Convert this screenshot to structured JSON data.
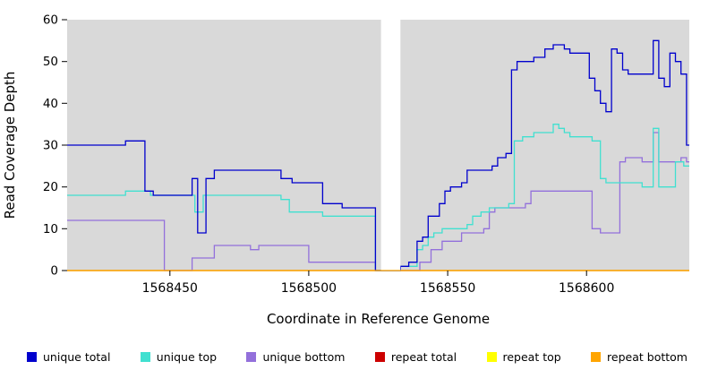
{
  "chart_data": {
    "type": "line",
    "step_interpolation": true,
    "title": "",
    "xlabel": "Coordinate in Reference Genome",
    "ylabel": "Read Coverage Depth",
    "xlim": [
      1568413,
      1568637
    ],
    "ylim": [
      0,
      60
    ],
    "x_ticks": [
      1568450,
      1568500,
      1568550,
      1568600
    ],
    "x_tick_labels": [
      "1568450",
      "1568500",
      "1568550",
      "1568600"
    ],
    "y_ticks": [
      0,
      10,
      20,
      30,
      40,
      50,
      60
    ],
    "y_tick_labels": [
      "0",
      "10",
      "20",
      "30",
      "40",
      "50",
      "60"
    ],
    "grid": false,
    "panel_background": "#d9d9d9",
    "masked_region": {
      "x_start": 1568526,
      "x_end": 1568533,
      "color": "#ffffff"
    },
    "legend_position": "bottom",
    "series": [
      {
        "name": "unique total",
        "color": "#0000cd",
        "points": [
          [
            1568413,
            30
          ],
          [
            1568434,
            31
          ],
          [
            1568441,
            19
          ],
          [
            1568444,
            18
          ],
          [
            1568458,
            22
          ],
          [
            1568460,
            9
          ],
          [
            1568463,
            22
          ],
          [
            1568466,
            24
          ],
          [
            1568490,
            22
          ],
          [
            1568494,
            21
          ],
          [
            1568505,
            16
          ],
          [
            1568512,
            15
          ],
          [
            1568524,
            0
          ],
          [
            1568533,
            1
          ],
          [
            1568536,
            2
          ],
          [
            1568539,
            7
          ],
          [
            1568541,
            8
          ],
          [
            1568543,
            13
          ],
          [
            1568547,
            16
          ],
          [
            1568549,
            19
          ],
          [
            1568551,
            20
          ],
          [
            1568555,
            21
          ],
          [
            1568557,
            24
          ],
          [
            1568566,
            25
          ],
          [
            1568568,
            27
          ],
          [
            1568571,
            28
          ],
          [
            1568573,
            48
          ],
          [
            1568575,
            50
          ],
          [
            1568581,
            51
          ],
          [
            1568585,
            53
          ],
          [
            1568588,
            54
          ],
          [
            1568592,
            53
          ],
          [
            1568594,
            52
          ],
          [
            1568601,
            46
          ],
          [
            1568603,
            43
          ],
          [
            1568605,
            40
          ],
          [
            1568607,
            38
          ],
          [
            1568609,
            53
          ],
          [
            1568611,
            52
          ],
          [
            1568613,
            48
          ],
          [
            1568615,
            47
          ],
          [
            1568624,
            55
          ],
          [
            1568626,
            46
          ],
          [
            1568628,
            44
          ],
          [
            1568630,
            52
          ],
          [
            1568632,
            50
          ],
          [
            1568634,
            47
          ],
          [
            1568636,
            30
          ]
        ]
      },
      {
        "name": "unique top",
        "color": "#40e0d0",
        "points": [
          [
            1568413,
            18
          ],
          [
            1568434,
            19
          ],
          [
            1568443,
            18
          ],
          [
            1568459,
            14
          ],
          [
            1568462,
            18
          ],
          [
            1568490,
            17
          ],
          [
            1568493,
            14
          ],
          [
            1568505,
            13
          ],
          [
            1568524,
            0
          ],
          [
            1568533,
            1
          ],
          [
            1568539,
            5
          ],
          [
            1568541,
            6
          ],
          [
            1568543,
            8
          ],
          [
            1568545,
            9
          ],
          [
            1568548,
            10
          ],
          [
            1568557,
            11
          ],
          [
            1568559,
            13
          ],
          [
            1568562,
            14
          ],
          [
            1568565,
            15
          ],
          [
            1568572,
            16
          ],
          [
            1568574,
            31
          ],
          [
            1568577,
            32
          ],
          [
            1568581,
            33
          ],
          [
            1568588,
            35
          ],
          [
            1568590,
            34
          ],
          [
            1568592,
            33
          ],
          [
            1568594,
            32
          ],
          [
            1568602,
            31
          ],
          [
            1568605,
            22
          ],
          [
            1568607,
            21
          ],
          [
            1568620,
            20
          ],
          [
            1568624,
            34
          ],
          [
            1568626,
            20
          ],
          [
            1568632,
            26
          ],
          [
            1568635,
            25
          ]
        ]
      },
      {
        "name": "unique bottom",
        "color": "#9370db",
        "points": [
          [
            1568413,
            12
          ],
          [
            1568448,
            0
          ],
          [
            1568458,
            3
          ],
          [
            1568466,
            6
          ],
          [
            1568479,
            5
          ],
          [
            1568482,
            6
          ],
          [
            1568500,
            2
          ],
          [
            1568524,
            0
          ],
          [
            1568533,
            0
          ],
          [
            1568540,
            2
          ],
          [
            1568544,
            5
          ],
          [
            1568548,
            7
          ],
          [
            1568555,
            9
          ],
          [
            1568563,
            10
          ],
          [
            1568565,
            14
          ],
          [
            1568567,
            15
          ],
          [
            1568578,
            16
          ],
          [
            1568580,
            19
          ],
          [
            1568602,
            10
          ],
          [
            1568605,
            9
          ],
          [
            1568612,
            26
          ],
          [
            1568614,
            27
          ],
          [
            1568620,
            26
          ],
          [
            1568624,
            33
          ],
          [
            1568626,
            26
          ],
          [
            1568634,
            27
          ],
          [
            1568636,
            26
          ]
        ]
      },
      {
        "name": "repeat total",
        "color": "#cc0000",
        "points": [
          [
            1568413,
            0
          ]
        ]
      },
      {
        "name": "repeat top",
        "color": "#ffff00",
        "points": [
          [
            1568413,
            0
          ]
        ]
      },
      {
        "name": "repeat bottom",
        "color": "#ffa500",
        "points": [
          [
            1568413,
            0
          ]
        ]
      }
    ]
  }
}
